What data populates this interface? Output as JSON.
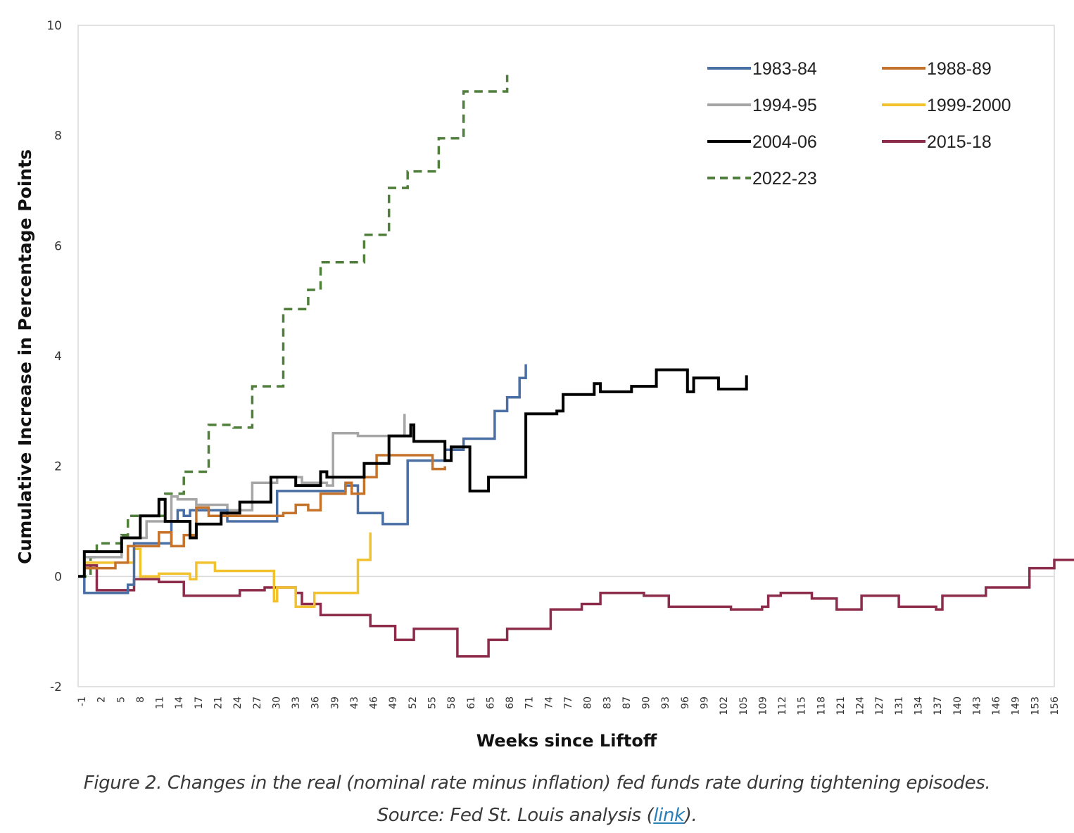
{
  "caption": {
    "line1": "Figure 2. Changes in the real (nominal rate minus inflation) fed funds rate during tightening episodes.",
    "line2_prefix": "Source: Fed St. Louis analysis (",
    "link_text": "link",
    "line2_suffix": ")."
  },
  "chart_data": {
    "type": "line",
    "title": "",
    "xlabel": "Weeks since Liftoff",
    "ylabel": "Cumulative  Increase in Percentage  Points",
    "ylim": [
      -2,
      10
    ],
    "yticks": [
      -2,
      0,
      2,
      4,
      6,
      8,
      10
    ],
    "xlim": [
      -1,
      156
    ],
    "xtick_labels": [
      "-1",
      "2",
      "5",
      "8",
      "11",
      "14",
      "17",
      "21",
      "24",
      "27",
      "30",
      "33",
      "36",
      "39",
      "43",
      "46",
      "49",
      "52",
      "55",
      "58",
      "61",
      "65",
      "68",
      "71",
      "74",
      "77",
      "80",
      "83",
      "87",
      "90",
      "93",
      "96",
      "99",
      "102",
      "105",
      "109",
      "112",
      "115",
      "118",
      "121",
      "124",
      "127",
      "131",
      "134",
      "137",
      "140",
      "143",
      "146",
      "149",
      "153",
      "156"
    ],
    "grid": false,
    "legend_position": "top-right",
    "colors": {
      "1983-84": "#4a6fa5",
      "1988-89": "#c5732a",
      "1994-95": "#a6a6a6",
      "1999-2000": "#f2c12e",
      "2004-06": "#000000",
      "2015-18": "#8c2b4a",
      "2022-23": "#4f7f3a"
    },
    "series": [
      {
        "name": "1983-84",
        "style": "solid",
        "points": [
          [
            -1,
            0
          ],
          [
            0,
            -0.3
          ],
          [
            6,
            -0.3
          ],
          [
            7,
            -0.15
          ],
          [
            8,
            0.6
          ],
          [
            13,
            0.6
          ],
          [
            14,
            1.0
          ],
          [
            15,
            1.2
          ],
          [
            16,
            1.1
          ],
          [
            17,
            1.2
          ],
          [
            20,
            1.2
          ],
          [
            23,
            1.0
          ],
          [
            30,
            1.0
          ],
          [
            31,
            1.55
          ],
          [
            42,
            1.65
          ],
          [
            44,
            1.15
          ],
          [
            47,
            1.15
          ],
          [
            48,
            0.95
          ],
          [
            51,
            0.95
          ],
          [
            52,
            2.1
          ],
          [
            58,
            2.3
          ],
          [
            61,
            2.5
          ],
          [
            65,
            2.5
          ],
          [
            66,
            3.0
          ],
          [
            68,
            3.25
          ],
          [
            70,
            3.6
          ],
          [
            71,
            3.85
          ]
        ]
      },
      {
        "name": "1988-89",
        "style": "solid",
        "points": [
          [
            -1,
            0
          ],
          [
            0,
            0.15
          ],
          [
            4,
            0.15
          ],
          [
            5,
            0.25
          ],
          [
            7,
            0.55
          ],
          [
            11,
            0.55
          ],
          [
            12,
            0.8
          ],
          [
            14,
            0.55
          ],
          [
            16,
            0.75
          ],
          [
            18,
            1.25
          ],
          [
            20,
            1.1
          ],
          [
            23,
            1.1
          ],
          [
            30,
            1.1
          ],
          [
            32,
            1.15
          ],
          [
            34,
            1.3
          ],
          [
            36,
            1.2
          ],
          [
            38,
            1.5
          ],
          [
            40,
            1.5
          ],
          [
            42,
            1.7
          ],
          [
            43,
            1.5
          ],
          [
            45,
            1.8
          ],
          [
            47,
            2.2
          ],
          [
            52,
            2.2
          ],
          [
            55,
            2.2
          ],
          [
            56,
            1.95
          ],
          [
            58,
            2.0
          ]
        ]
      },
      {
        "name": "1994-95",
        "style": "solid",
        "points": [
          [
            -1,
            0
          ],
          [
            0,
            0.35
          ],
          [
            5,
            0.35
          ],
          [
            6,
            0.7
          ],
          [
            9,
            0.7
          ],
          [
            10,
            1.0
          ],
          [
            13,
            1.0
          ],
          [
            14,
            1.45
          ],
          [
            15,
            1.4
          ],
          [
            17,
            1.4
          ],
          [
            18,
            1.3
          ],
          [
            20,
            1.3
          ],
          [
            23,
            1.2
          ],
          [
            26,
            1.2
          ],
          [
            27,
            1.7
          ],
          [
            30,
            1.7
          ],
          [
            31,
            1.8
          ],
          [
            35,
            1.7
          ],
          [
            37,
            1.7
          ],
          [
            39,
            1.65
          ],
          [
            40,
            2.6
          ],
          [
            42,
            2.6
          ],
          [
            44,
            2.55
          ],
          [
            48,
            2.55
          ],
          [
            51,
            2.55
          ],
          [
            51.5,
            2.95
          ]
        ]
      },
      {
        "name": "1999-2000",
        "style": "solid",
        "points": [
          [
            -1,
            0
          ],
          [
            0,
            0.25
          ],
          [
            7,
            0.25
          ],
          [
            8,
            0.5
          ],
          [
            9,
            0.0
          ],
          [
            12,
            0.05
          ],
          [
            15,
            0.05
          ],
          [
            17,
            -0.05
          ],
          [
            18,
            0.25
          ],
          [
            20,
            0.25
          ],
          [
            21,
            0.1
          ],
          [
            30,
            0.1
          ],
          [
            30.5,
            -0.45
          ],
          [
            31,
            -0.2
          ],
          [
            33,
            -0.2
          ],
          [
            34,
            -0.55
          ],
          [
            36,
            -0.55
          ],
          [
            37,
            -0.3
          ],
          [
            43,
            -0.3
          ],
          [
            44,
            0.3
          ],
          [
            45,
            0.3
          ],
          [
            46,
            0.8
          ]
        ]
      },
      {
        "name": "2004-06",
        "style": "solid",
        "points": [
          [
            -1,
            0
          ],
          [
            0,
            0.45
          ],
          [
            5,
            0.45
          ],
          [
            6,
            0.7
          ],
          [
            8,
            0.7
          ],
          [
            9,
            1.1
          ],
          [
            11,
            1.1
          ],
          [
            12,
            1.4
          ],
          [
            13,
            1.0
          ],
          [
            15,
            1.0
          ],
          [
            17,
            0.7
          ],
          [
            18,
            0.95
          ],
          [
            21,
            0.95
          ],
          [
            22,
            1.15
          ],
          [
            24,
            1.15
          ],
          [
            25,
            1.35
          ],
          [
            29,
            1.35
          ],
          [
            30,
            1.8
          ],
          [
            33,
            1.8
          ],
          [
            34,
            1.65
          ],
          [
            37,
            1.65
          ],
          [
            38,
            1.9
          ],
          [
            39,
            1.8
          ],
          [
            44,
            1.8
          ],
          [
            45,
            2.05
          ],
          [
            48,
            2.05
          ],
          [
            49,
            2.55
          ],
          [
            52,
            2.55
          ],
          [
            52.5,
            2.75
          ],
          [
            53,
            2.45
          ],
          [
            57,
            2.45
          ],
          [
            58,
            2.1
          ],
          [
            59,
            2.35
          ],
          [
            61,
            2.35
          ],
          [
            62,
            1.55
          ],
          [
            64,
            1.55
          ],
          [
            65,
            1.8
          ],
          [
            70,
            1.8
          ],
          [
            71,
            2.95
          ],
          [
            75,
            2.95
          ],
          [
            76,
            3.0
          ],
          [
            77,
            3.3
          ],
          [
            81,
            3.3
          ],
          [
            82,
            3.5
          ],
          [
            83,
            3.35
          ],
          [
            87,
            3.35
          ],
          [
            88,
            3.45
          ],
          [
            91,
            3.45
          ],
          [
            92,
            3.75
          ],
          [
            96,
            3.75
          ],
          [
            97,
            3.35
          ],
          [
            98,
            3.6
          ],
          [
            101,
            3.6
          ],
          [
            102,
            3.4
          ],
          [
            106,
            3.4
          ],
          [
            106.5,
            3.65
          ]
        ]
      },
      {
        "name": "2015-18",
        "style": "solid",
        "points": [
          [
            -1,
            0
          ],
          [
            0,
            0.2
          ],
          [
            2,
            -0.25
          ],
          [
            7,
            -0.25
          ],
          [
            8,
            -0.05
          ],
          [
            12,
            -0.1
          ],
          [
            15,
            -0.1
          ],
          [
            16,
            -0.35
          ],
          [
            23,
            -0.35
          ],
          [
            25,
            -0.25
          ],
          [
            28,
            -0.25
          ],
          [
            29,
            -0.2
          ],
          [
            33,
            -0.2
          ],
          [
            34,
            -0.3
          ],
          [
            35,
            -0.5
          ],
          [
            37,
            -0.5
          ],
          [
            38,
            -0.7
          ],
          [
            45,
            -0.7
          ],
          [
            46,
            -0.9
          ],
          [
            49,
            -0.9
          ],
          [
            50,
            -1.15
          ],
          [
            52,
            -1.15
          ],
          [
            53,
            -0.95
          ],
          [
            59,
            -0.95
          ],
          [
            60,
            -1.45
          ],
          [
            64,
            -1.45
          ],
          [
            65,
            -1.15
          ],
          [
            67,
            -1.15
          ],
          [
            68,
            -0.95
          ],
          [
            74,
            -0.95
          ],
          [
            75,
            -0.6
          ],
          [
            79,
            -0.6
          ],
          [
            80,
            -0.5
          ],
          [
            82,
            -0.5
          ],
          [
            83,
            -0.3
          ],
          [
            88,
            -0.3
          ],
          [
            90,
            -0.35
          ],
          [
            93,
            -0.35
          ],
          [
            94,
            -0.55
          ],
          [
            103,
            -0.55
          ],
          [
            104,
            -0.6
          ],
          [
            108,
            -0.6
          ],
          [
            109,
            -0.55
          ],
          [
            110,
            -0.35
          ],
          [
            112,
            -0.3
          ],
          [
            116,
            -0.3
          ],
          [
            117,
            -0.4
          ],
          [
            120,
            -0.4
          ],
          [
            121,
            -0.6
          ],
          [
            124,
            -0.6
          ],
          [
            125,
            -0.35
          ],
          [
            130,
            -0.35
          ],
          [
            131,
            -0.55
          ],
          [
            135,
            -0.55
          ],
          [
            137,
            -0.6
          ],
          [
            138,
            -0.35
          ],
          [
            144,
            -0.35
          ],
          [
            145,
            -0.2
          ],
          [
            151,
            -0.2
          ],
          [
            152,
            0.15
          ],
          [
            155,
            0.15
          ],
          [
            156,
            0.3
          ],
          [
            162,
            0.3
          ],
          [
            162.5,
            0.55
          ]
        ]
      },
      {
        "name": "2022-23",
        "style": "dashed",
        "points": [
          [
            -1,
            0
          ],
          [
            1,
            0.35
          ],
          [
            2,
            0.6
          ],
          [
            5,
            0.6
          ],
          [
            6,
            0.75
          ],
          [
            7,
            1.1
          ],
          [
            12,
            1.1
          ],
          [
            13,
            1.5
          ],
          [
            15,
            1.5
          ],
          [
            16,
            1.9
          ],
          [
            19,
            1.9
          ],
          [
            20,
            2.75
          ],
          [
            23,
            2.75
          ],
          [
            24,
            2.7
          ],
          [
            26,
            2.7
          ],
          [
            27,
            3.45
          ],
          [
            31,
            3.45
          ],
          [
            32,
            4.85
          ],
          [
            35,
            4.85
          ],
          [
            36,
            5.2
          ],
          [
            37,
            5.2
          ],
          [
            38,
            5.7
          ],
          [
            44,
            5.7
          ],
          [
            45,
            6.2
          ],
          [
            48,
            6.2
          ],
          [
            49,
            7.05
          ],
          [
            51,
            7.05
          ],
          [
            52,
            7.35
          ],
          [
            56,
            7.35
          ],
          [
            57,
            7.95
          ],
          [
            60,
            7.95
          ],
          [
            61,
            8.8
          ],
          [
            67,
            8.8
          ],
          [
            68,
            9.1
          ]
        ]
      }
    ]
  }
}
